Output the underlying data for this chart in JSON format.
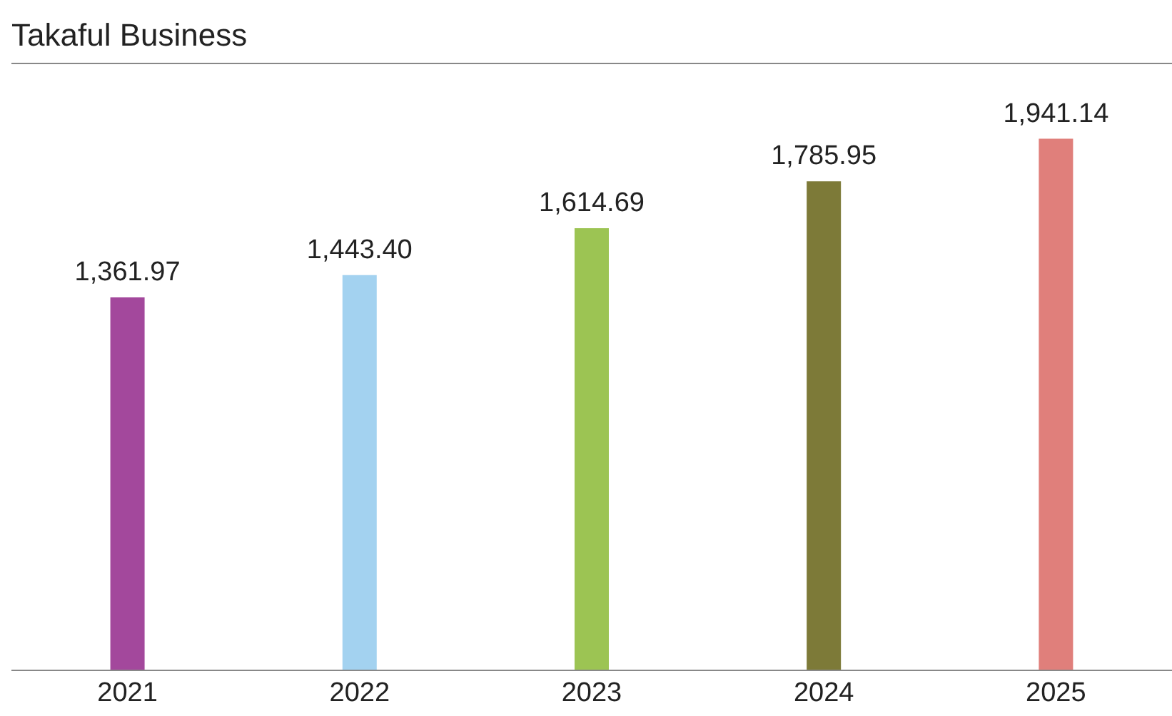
{
  "chart_data": {
    "type": "bar",
    "title": "Takaful Business",
    "categories": [
      "2021",
      "2022",
      "2023",
      "2024",
      "2025"
    ],
    "values": [
      1361.97,
      1443.4,
      1614.69,
      1785.95,
      1941.14
    ],
    "colors": [
      "#a3489c",
      "#a3d2f0",
      "#9cc453",
      "#7d7a38",
      "#e07f7b"
    ],
    "value_labels": [
      "1,361.97",
      "1,443.40",
      "1,614.69",
      "1,785.95",
      "1,941.14"
    ]
  }
}
